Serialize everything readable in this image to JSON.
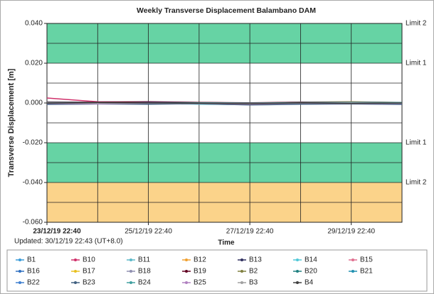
{
  "chart_data": {
    "type": "line",
    "title": "Weekly Transverse Displacement Balambano DAM",
    "y_label": "Transverse Displacement [m]",
    "x_label": "Time",
    "note": "Updated: 30/12/19 22:43 (UT+8.0)",
    "xlim": [
      "2019-12-23T22:40",
      "2019-12-30T22:40"
    ],
    "xticks": [
      {
        "value": "2019-12-23T22:40",
        "label": "23/12/19 22:40"
      },
      {
        "value": "2019-12-25T22:40",
        "label": "25/12/19 22:40"
      },
      {
        "value": "2019-12-27T22:40",
        "label": "27/12/19 22:40"
      },
      {
        "value": "2019-12-29T22:40",
        "label": "29/12/19 22:40"
      }
    ],
    "xminor_ticks": [
      "2019-12-24T22:40",
      "2019-12-26T22:40",
      "2019-12-28T22:40",
      "2019-12-30T22:40"
    ],
    "ylim": [
      -0.06,
      0.04
    ],
    "yticks": [
      {
        "value": 0.04,
        "label": "0.040"
      },
      {
        "value": 0.02,
        "label": "0.020"
      },
      {
        "value": 0,
        "label": "0.000"
      },
      {
        "value": -0.02,
        "label": "-0.020"
      },
      {
        "value": -0.04,
        "label": "-0.040"
      },
      {
        "value": -0.06,
        "label": "-0.060"
      }
    ],
    "yminor_ticks": [
      0.03,
      0.01,
      -0.01,
      -0.03,
      -0.05
    ],
    "grid": true,
    "bands": [
      {
        "from": 0.02,
        "to": 0.04,
        "color": "#66d3a4"
      },
      {
        "from": -0.02,
        "to": -0.04,
        "color": "#66d3a4"
      },
      {
        "from": -0.04,
        "to": -0.06,
        "color": "#fbd38a"
      }
    ],
    "limits": [
      {
        "label": "Limit 2",
        "value": 0.04
      },
      {
        "label": "Limit 1",
        "value": 0.02
      },
      {
        "label": "Limit 1",
        "value": -0.02
      },
      {
        "label": "Limit 2",
        "value": -0.04
      }
    ],
    "x": [
      "2019-12-23T22:40",
      "2019-12-24T22:40",
      "2019-12-25T22:40",
      "2019-12-26T22:40",
      "2019-12-27T22:40",
      "2019-12-28T22:40",
      "2019-12-29T22:40",
      "2019-12-30T22:40"
    ],
    "series": [
      {
        "name": "B1",
        "color": "#3a9bd9",
        "values": [
          0.0004,
          0.0002,
          0.0003,
          -0.0002,
          -0.0004,
          0.0001,
          0.0002,
          0.0003
        ]
      },
      {
        "name": "B10",
        "color": "#d0306a",
        "values": [
          0.0025,
          0.0006,
          0.0004,
          0.0001,
          -0.0003,
          0.0005,
          0.0003,
          0.0001
        ]
      },
      {
        "name": "B11",
        "color": "#5bb8c8",
        "values": [
          -0.0003,
          -0.0001,
          0.0002,
          -0.0004,
          -0.0006,
          -0.0002,
          -0.0001,
          0.0002
        ]
      },
      {
        "name": "B12",
        "color": "#f0a030",
        "values": [
          0.0001,
          0.0003,
          0.0001,
          0.0002,
          -0.0002,
          0.0004,
          0.0006,
          0.0002
        ]
      },
      {
        "name": "B13",
        "color": "#303060",
        "values": [
          0.0002,
          -0.0002,
          0.0004,
          0.0003,
          -0.0001,
          0.0002,
          0.0001,
          -0.0002
        ]
      },
      {
        "name": "B14",
        "color": "#50c8d8",
        "values": [
          -0.0005,
          -0.0003,
          -0.0002,
          -0.0006,
          -0.0008,
          -0.0004,
          -0.0003,
          -0.0005
        ]
      },
      {
        "name": "B15",
        "color": "#e07090",
        "values": [
          0.0003,
          0.0001,
          -0.0001,
          0.0002,
          0.0,
          0.0001,
          0.0002,
          0.0
        ]
      },
      {
        "name": "B16",
        "color": "#3070c0",
        "values": [
          -0.0002,
          0.0,
          -0.0003,
          -0.0001,
          -0.0005,
          -0.0002,
          0.0,
          -0.0001
        ]
      },
      {
        "name": "B17",
        "color": "#e8c020",
        "values": [
          0.0001,
          0.0002,
          0.0,
          0.0001,
          -0.0002,
          0.0003,
          0.0001,
          0.0002
        ]
      },
      {
        "name": "B18",
        "color": "#9090b0",
        "values": [
          -0.0006,
          -0.0004,
          -0.0005,
          -0.0003,
          -0.0007,
          -0.0005,
          -0.0004,
          -0.0006
        ]
      },
      {
        "name": "B19",
        "color": "#600020",
        "values": [
          0.0005,
          0.0004,
          0.0006,
          0.0003,
          0.0001,
          0.0004,
          0.0005,
          0.0003
        ]
      },
      {
        "name": "B2",
        "color": "#808040",
        "values": [
          -0.0001,
          0.0001,
          -0.0002,
          0.0,
          -0.0003,
          0.0,
          -0.0001,
          0.0001
        ]
      },
      {
        "name": "B20",
        "color": "#208080",
        "values": [
          0.0002,
          0.0,
          0.0001,
          -0.0003,
          -0.0002,
          0.0001,
          0.0,
          -0.0001
        ]
      },
      {
        "name": "B21",
        "color": "#2090b0",
        "values": [
          -0.0004,
          -0.0002,
          -0.0001,
          -0.0005,
          -0.0009,
          -0.0003,
          -0.0002,
          -0.0004
        ]
      },
      {
        "name": "B22",
        "color": "#4080d0",
        "values": [
          0.0,
          -0.0001,
          0.0002,
          0.0001,
          -0.0004,
          0.0002,
          0.0003,
          0.0001
        ]
      },
      {
        "name": "B23",
        "color": "#406080",
        "values": [
          -0.0007,
          -0.0005,
          -0.0006,
          -0.0004,
          -0.001,
          -0.0006,
          -0.0005,
          -0.0007
        ]
      },
      {
        "name": "B24",
        "color": "#40a0a0",
        "values": [
          0.0003,
          0.0002,
          0.0,
          0.0001,
          -0.0001,
          0.0002,
          0.0004,
          0.0002
        ]
      },
      {
        "name": "B25",
        "color": "#b080c0",
        "values": [
          -0.0002,
          -0.0004,
          -0.0001,
          -0.0002,
          -0.0006,
          -0.0001,
          -0.0003,
          -0.0002
        ]
      },
      {
        "name": "B3",
        "color": "#a0a0a0",
        "values": [
          0.0001,
          -0.0001,
          0.0,
          -0.0002,
          -0.0003,
          0.0,
          0.0001,
          -0.0001
        ]
      },
      {
        "name": "B4",
        "color": "#404040",
        "values": [
          -0.0001,
          0.0002,
          0.0001,
          -0.0001,
          -0.0004,
          0.0001,
          -0.0002,
          0.0
        ]
      }
    ]
  }
}
